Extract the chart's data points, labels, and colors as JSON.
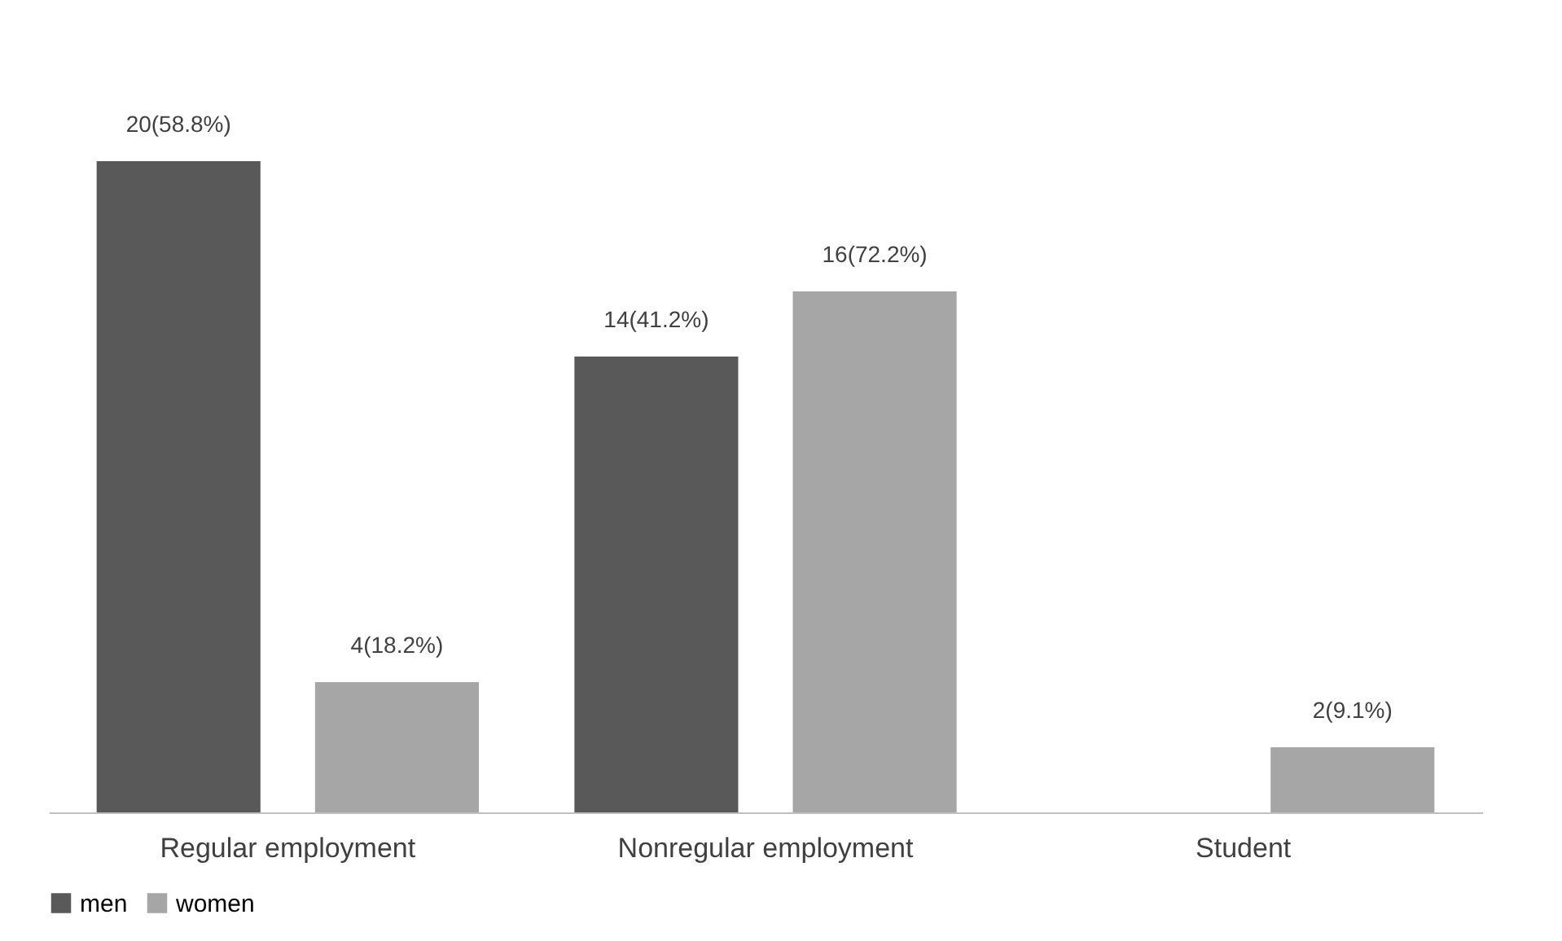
{
  "chart_data": {
    "type": "bar",
    "categories": [
      "Regular employment",
      "Nonregular employment",
      "Student"
    ],
    "series": [
      {
        "name": "men",
        "color": "#595959",
        "values": [
          20,
          14,
          null
        ],
        "value_labels": [
          "20(58.8%)",
          "14(41.2%)",
          null
        ]
      },
      {
        "name": "women",
        "color": "#a6a6a6",
        "values": [
          4,
          16,
          2
        ],
        "value_labels": [
          "4(18.2%)",
          "16(72.2%)",
          "2(9.1%)"
        ]
      }
    ],
    "ylim": [
      0,
      20
    ],
    "tick_labels": "x",
    "legend": "bottom"
  }
}
